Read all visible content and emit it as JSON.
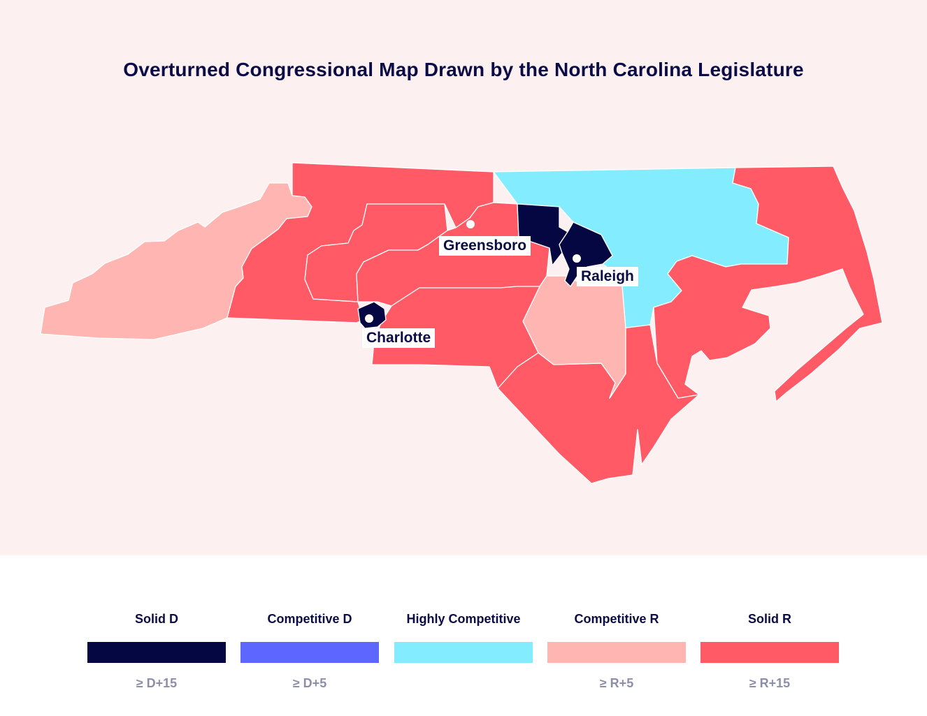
{
  "title": "Overturned Congressional Map Drawn by the North Carolina Legislature",
  "colors": {
    "solid_d": "#050742",
    "competitive_d": "#5d66ff",
    "highly_competitive": "#84ecff",
    "competitive_r": "#ffb6b2",
    "solid_r": "#ff5a66",
    "background": "#fdf0f1",
    "title_text": "#0b0b45",
    "threshold_text": "#8d8fa8"
  },
  "cities": [
    {
      "name": "Greensboro"
    },
    {
      "name": "Raleigh"
    },
    {
      "name": "Charlotte"
    }
  ],
  "legend": {
    "items": [
      {
        "label": "Solid D",
        "threshold": "≥ D+15",
        "color_key": "solid_d"
      },
      {
        "label": "Competitive D",
        "threshold": "≥ D+5",
        "color_key": "competitive_d"
      },
      {
        "label": "Highly Competitive",
        "threshold": "",
        "color_key": "highly_competitive"
      },
      {
        "label": "Competitive R",
        "threshold": "≥ R+5",
        "color_key": "competitive_r"
      },
      {
        "label": "Solid R",
        "threshold": "≥ R+15",
        "color_key": "solid_r"
      }
    ]
  }
}
